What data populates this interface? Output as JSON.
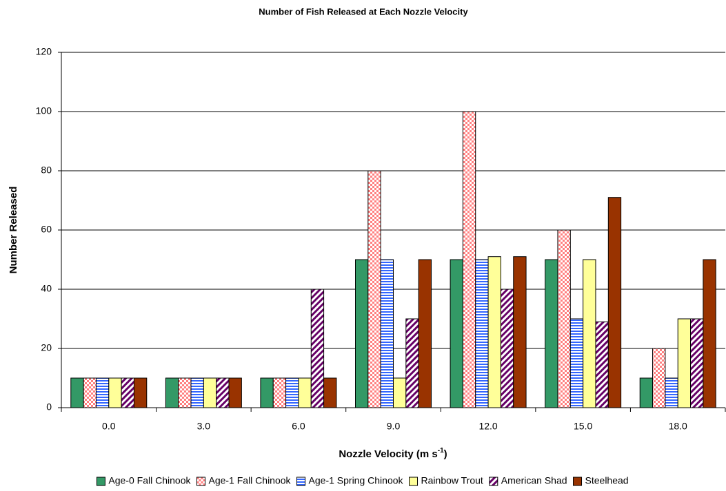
{
  "chart_data": {
    "type": "bar",
    "title": "Number of Fish Released at Each Nozzle Velocity",
    "x_label": [
      "Nozzle Velocity (m s",
      "-1",
      ")"
    ],
    "y_label": "Number Released",
    "categories": [
      "0.0",
      "3.0",
      "6.0",
      "9.0",
      "12.0",
      "15.0",
      "18.0"
    ],
    "series": [
      {
        "name": "Age-0 Fall Chinook",
        "color": "#339966",
        "pattern": "solid",
        "values": [
          10,
          10,
          10,
          50,
          50,
          50,
          10
        ]
      },
      {
        "name": "Age-1 Fall Chinook",
        "color": "#ff8080",
        "pattern": "checker",
        "values": [
          10,
          10,
          10,
          80,
          100,
          60,
          20
        ]
      },
      {
        "name": "Age-1 Spring Chinook",
        "color": "#3366ff",
        "pattern": "hstripe",
        "values": [
          10,
          10,
          10,
          50,
          50,
          30,
          10
        ]
      },
      {
        "name": "Rainbow Trout",
        "color": "#ffff99",
        "pattern": "solid",
        "values": [
          10,
          10,
          10,
          10,
          51,
          50,
          30
        ]
      },
      {
        "name": "American Shad",
        "color": "#660066",
        "pattern": "diagonal",
        "values": [
          10,
          10,
          40,
          30,
          40,
          29,
          30
        ]
      },
      {
        "name": "Steelhead",
        "color": "#993300",
        "pattern": "solid",
        "values": [
          10,
          10,
          10,
          50,
          51,
          71,
          50
        ]
      }
    ],
    "ylim": [
      0,
      120
    ],
    "yticks": [
      0,
      20,
      40,
      60,
      80,
      100,
      120
    ],
    "grid": true,
    "legend": "bottom"
  }
}
